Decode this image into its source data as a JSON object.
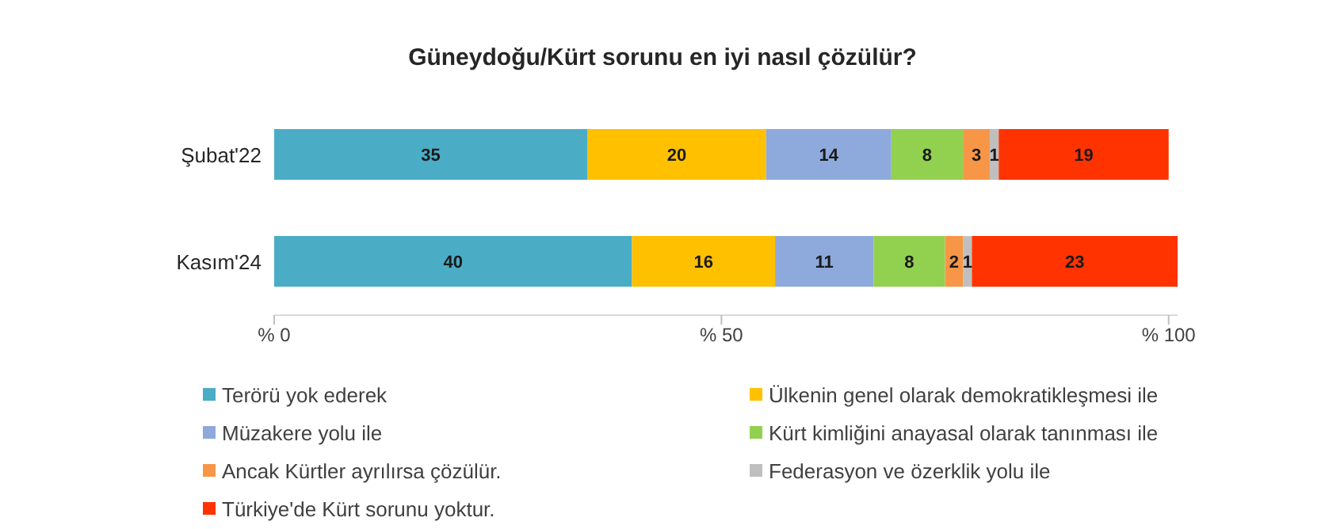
{
  "chart_data": {
    "type": "bar",
    "orientation": "horizontal",
    "stacked": true,
    "title": "Güneydoğu/Kürt sorunu en iyi nasıl çözülür?",
    "categories": [
      "Şubat'22",
      "Kasım'24"
    ],
    "series": [
      {
        "name": "Terörü yok ederek",
        "color": "#4bacc6",
        "values": [
          35,
          40
        ]
      },
      {
        "name": "Ülkenin genel olarak demokratikleşmesi ile",
        "color": "#ffc000",
        "values": [
          20,
          16
        ]
      },
      {
        "name": "Müzakere yolu ile",
        "color": "#8ea9db",
        "values": [
          14,
          11
        ]
      },
      {
        "name": "Kürt kimliğini anayasal olarak tanınması ile",
        "color": "#92d050",
        "values": [
          8,
          8
        ]
      },
      {
        "name": "Ancak Kürtler ayrılırsa çözülür.",
        "color": "#f79646",
        "values": [
          3,
          2
        ]
      },
      {
        "name": "Federasyon ve özerklik yolu ile",
        "color": "#bfbfbf",
        "values": [
          1,
          1
        ]
      },
      {
        "name": "Türkiye'de Kürt sorunu yoktur.",
        "color": "#ff3300",
        "values": [
          19,
          23
        ]
      }
    ],
    "xlim": [
      0,
      101
    ],
    "xticks": [
      {
        "value": 0,
        "label": "% 0"
      },
      {
        "value": 50,
        "label": "% 50"
      },
      {
        "value": 100,
        "label": "% 100"
      }
    ],
    "data_labels": true,
    "legend": "bottom",
    "grid": false
  }
}
